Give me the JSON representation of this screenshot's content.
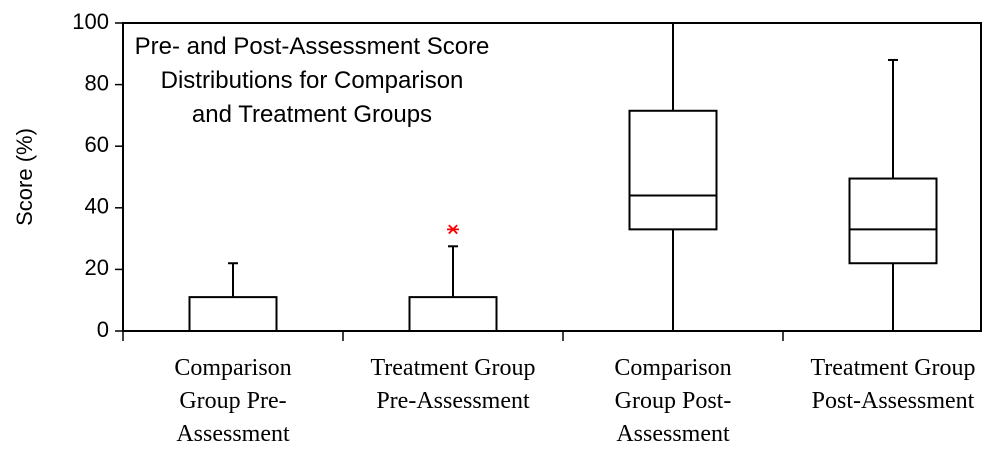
{
  "chart_data": {
    "type": "box",
    "title": "Pre- and Post-Assessment Score\nDistributions for Comparison\nand Treatment Groups",
    "y_label": "Score (%)",
    "categories": [
      "Comparison Group Pre-Assessment",
      "Treatment Group Pre-Assessment",
      "Comparison Group Post-Assessment",
      "Treatment Group Post-Assessment"
    ],
    "boxes": [
      {
        "min": 0,
        "q1": 0,
        "median": 0,
        "q3": 11,
        "max": 22,
        "outliers": []
      },
      {
        "min": 0,
        "q1": 0,
        "median": 0,
        "q3": 11,
        "max": 27.5,
        "outliers": [
          33
        ]
      },
      {
        "min": 0,
        "q1": 33,
        "median": 44,
        "q3": 71.5,
        "max": 100,
        "outliers": []
      },
      {
        "min": 0,
        "q1": 22,
        "median": 33,
        "q3": 49.5,
        "max": 88,
        "outliers": []
      }
    ],
    "color": "#000000",
    "outlier_color": "#ff0000",
    "ylim": [
      0,
      100
    ],
    "yticks": [
      0,
      20,
      40,
      60,
      80,
      100
    ],
    "grid": false
  }
}
